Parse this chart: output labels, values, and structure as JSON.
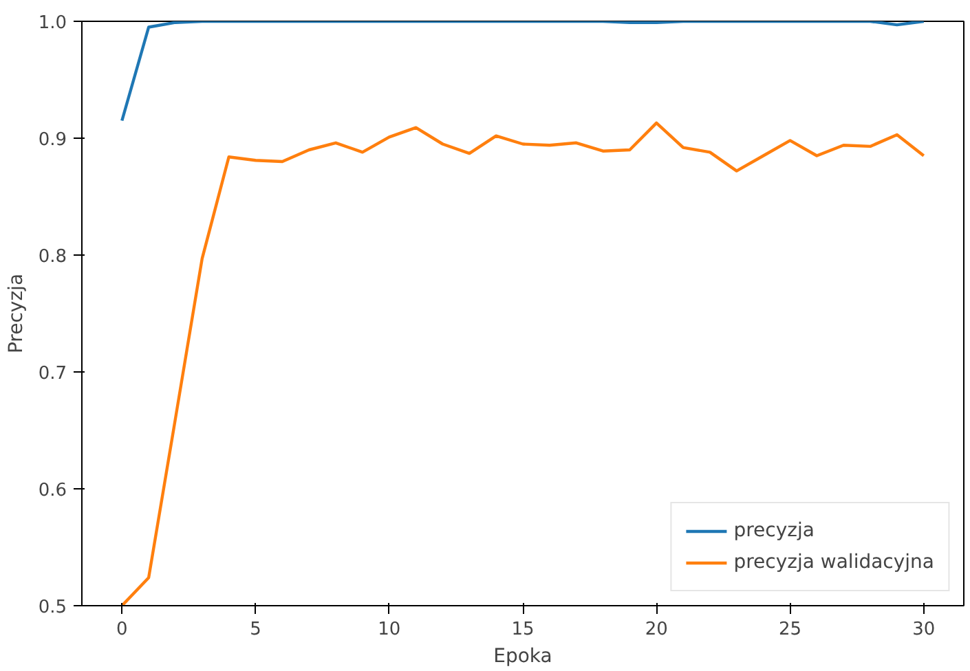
{
  "chart_data": {
    "type": "line",
    "xlabel": "Epoka",
    "ylabel": "Precyzja",
    "x": [
      0,
      1,
      2,
      3,
      4,
      5,
      6,
      7,
      8,
      9,
      10,
      11,
      12,
      13,
      14,
      15,
      16,
      17,
      18,
      19,
      20,
      21,
      22,
      23,
      24,
      25,
      26,
      27,
      28,
      29,
      30
    ],
    "series": [
      {
        "name": "precyzja",
        "color": "#1f77b4",
        "values": [
          0.915,
          0.995,
          0.999,
          1.0,
          1.0,
          1.0,
          1.0,
          1.0,
          1.0,
          1.0,
          1.0,
          1.0,
          1.0,
          1.0,
          1.0,
          1.0,
          1.0,
          1.0,
          1.0,
          0.999,
          0.999,
          1.0,
          1.0,
          1.0,
          1.0,
          1.0,
          1.0,
          1.0,
          1.0,
          0.997,
          1.0
        ]
      },
      {
        "name": "precyzja walidacyjna",
        "color": "#ff7f0e",
        "values": [
          0.5,
          0.524,
          0.66,
          0.797,
          0.884,
          0.881,
          0.88,
          0.89,
          0.896,
          0.888,
          0.901,
          0.909,
          0.895,
          0.887,
          0.902,
          0.895,
          0.894,
          0.896,
          0.889,
          0.89,
          0.913,
          0.892,
          0.888,
          0.872,
          0.885,
          0.898,
          0.885,
          0.894,
          0.893,
          0.903,
          0.885
        ]
      }
    ],
    "xlim": [
      -1.5,
      31.5
    ],
    "ylim": [
      0.5,
      1.0
    ],
    "xticks": [
      0,
      5,
      10,
      15,
      20,
      25,
      30
    ],
    "yticks": [
      0.5,
      0.6,
      0.7,
      0.8,
      0.9,
      {
        "value": 1.0,
        "label": "1.0"
      }
    ],
    "grid": false,
    "legend": "bottom right"
  }
}
